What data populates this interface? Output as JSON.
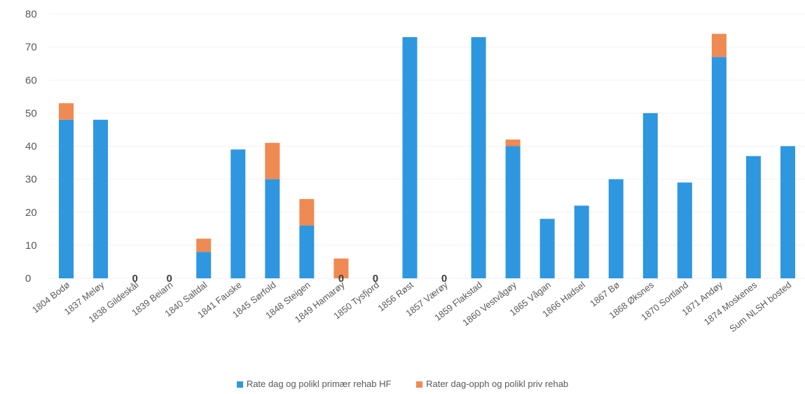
{
  "chart_data": {
    "type": "bar",
    "stacked": true,
    "categories": [
      "1804 Bodø",
      "1837 Meløy",
      "1838 Gildeskål",
      "1839 Beiarn",
      "1840 Saltdal",
      "1841 Fauske",
      "1845 Sørfold",
      "1848 Steigen",
      "1849 Hamarøy",
      "1850 Tysfjord",
      "1856 Røst",
      "1857 Værøy",
      "1859 Flakstad",
      "1860 Vestvågøy",
      "1865 Vågan",
      "1866 Hadsel",
      "1867 Bø",
      "1868 Øksnes",
      "1870 Sortland",
      "1871 Andøy",
      "1874 Moskenes",
      "Sum NLSH bosted"
    ],
    "series": [
      {
        "name": "Rate dag og polikl primær rehab HF",
        "color": "#2e97e0",
        "values": [
          48,
          48,
          0,
          0,
          8,
          39,
          30,
          16,
          0,
          0,
          73,
          0,
          73,
          40,
          18,
          22,
          30,
          50,
          29,
          67,
          37,
          40
        ]
      },
      {
        "name": "Rater dag-opph og polikl priv rehab",
        "color": "#ef8a52",
        "values": [
          5,
          0,
          0,
          0,
          4,
          0,
          11,
          8,
          6,
          0,
          0,
          0,
          0,
          2,
          0,
          0,
          0,
          0,
          0,
          7,
          0,
          0
        ]
      }
    ],
    "ylim": [
      0,
      80
    ],
    "yticks": [
      "0",
      "10",
      "20",
      "30",
      "40",
      "50",
      "60",
      "70",
      "80"
    ],
    "zero_labels": [
      "0",
      "0",
      "0",
      "0",
      "0"
    ],
    "zero_label_categories": [
      "1838 Gildeskål",
      "1839 Beiarn",
      "1849 Hamarøy",
      "1850 Tysfjord",
      "1857 Værøy"
    ],
    "grid": true,
    "legend": "bottom",
    "title": "",
    "xlabel": "",
    "ylabel": ""
  }
}
